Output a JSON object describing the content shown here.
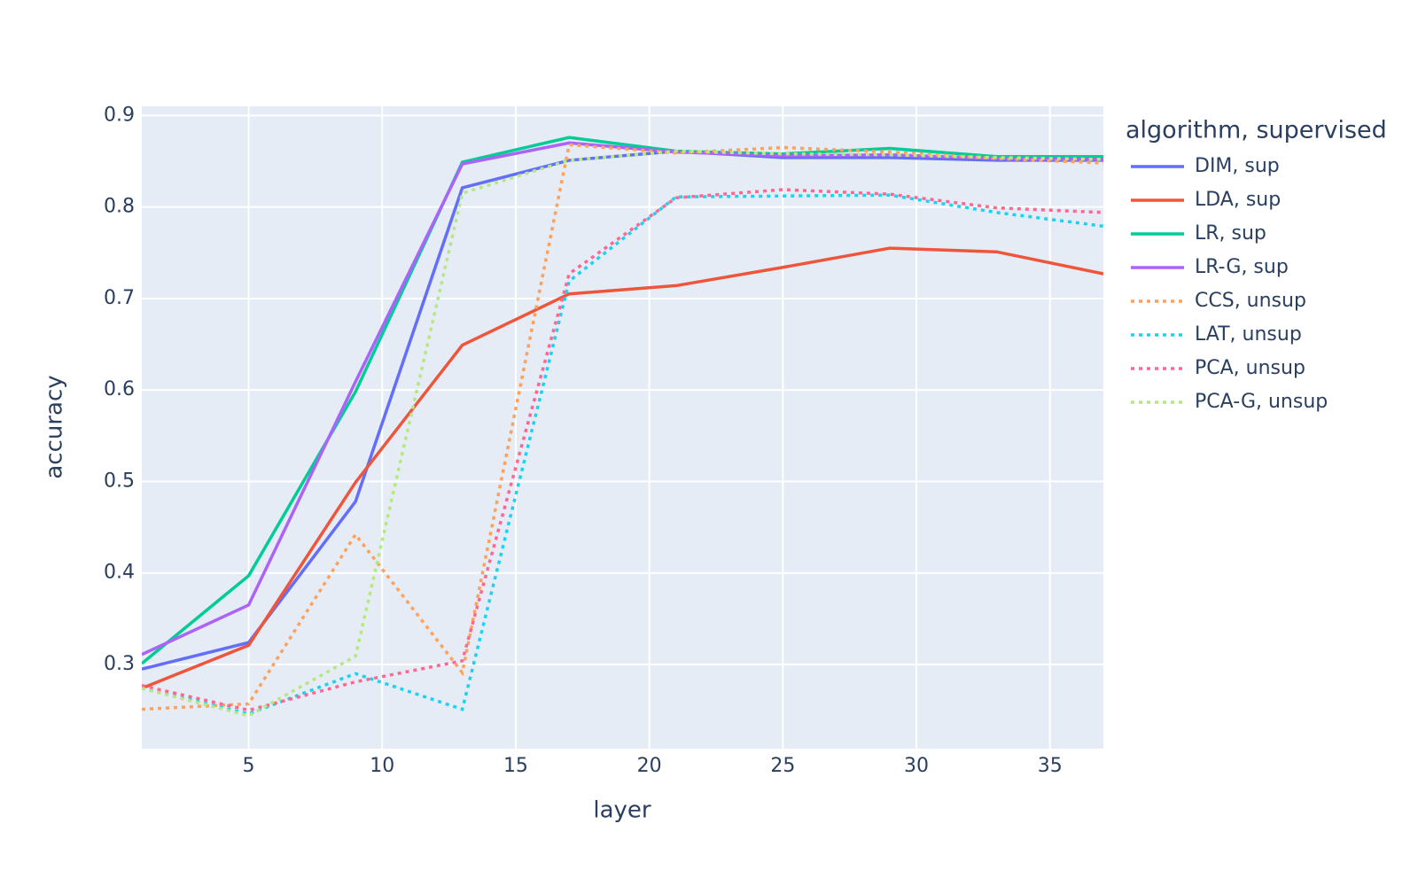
{
  "chart_data": {
    "type": "line",
    "x_label": "layer",
    "y_label": "accuracy",
    "legend_title": "algorithm, supervised",
    "x": [
      1,
      5,
      9,
      13,
      17,
      21,
      25,
      29,
      33,
      37
    ],
    "xlim": [
      1,
      37
    ],
    "xticks": [
      5,
      10,
      15,
      20,
      25,
      30,
      35
    ],
    "ylim": [
      0.208,
      0.91
    ],
    "yticks": [
      0.3,
      0.4,
      0.5,
      0.6,
      0.7,
      0.8,
      0.9
    ],
    "grid": true,
    "legend": "right",
    "series": [
      {
        "name": "DIM, sup",
        "color": "#636efa",
        "dash": "solid",
        "values": [
          0.295,
          0.324,
          0.478,
          0.821,
          0.851,
          0.861,
          0.854,
          0.854,
          0.851,
          0.851
        ]
      },
      {
        "name": "LDA, sup",
        "color": "#ef553b",
        "dash": "solid",
        "values": [
          0.274,
          0.321,
          0.499,
          0.649,
          0.705,
          0.714,
          0.734,
          0.755,
          0.751,
          0.727
        ]
      },
      {
        "name": "LR, sup",
        "color": "#00cc96",
        "dash": "solid",
        "values": [
          0.301,
          0.397,
          0.598,
          0.849,
          0.876,
          0.861,
          0.858,
          0.864,
          0.855,
          0.855
        ]
      },
      {
        "name": "LR-G, sup",
        "color": "#ab63fa",
        "dash": "solid",
        "values": [
          0.311,
          0.365,
          0.609,
          0.847,
          0.87,
          0.86,
          0.856,
          0.857,
          0.853,
          0.852
        ]
      },
      {
        "name": "CCS, unsup",
        "color": "#ffa15a",
        "dash": "dot",
        "values": [
          0.251,
          0.257,
          0.442,
          0.291,
          0.868,
          0.859,
          0.865,
          0.86,
          0.853,
          0.848
        ]
      },
      {
        "name": "LAT, unsup",
        "color": "#19d3f3",
        "dash": "dot",
        "values": [
          0.274,
          0.246,
          0.29,
          0.251,
          0.719,
          0.811,
          0.812,
          0.813,
          0.794,
          0.779
        ]
      },
      {
        "name": "PCA, unsup",
        "color": "#ff6692",
        "dash": "dot",
        "values": [
          0.277,
          0.25,
          0.281,
          0.304,
          0.727,
          0.81,
          0.819,
          0.814,
          0.799,
          0.794
        ]
      },
      {
        "name": "PCA-G, unsup",
        "color": "#b6e880",
        "dash": "dot",
        "values": [
          0.274,
          0.244,
          0.309,
          0.815,
          0.851,
          0.861,
          0.858,
          0.857,
          0.854,
          0.852
        ]
      }
    ]
  }
}
